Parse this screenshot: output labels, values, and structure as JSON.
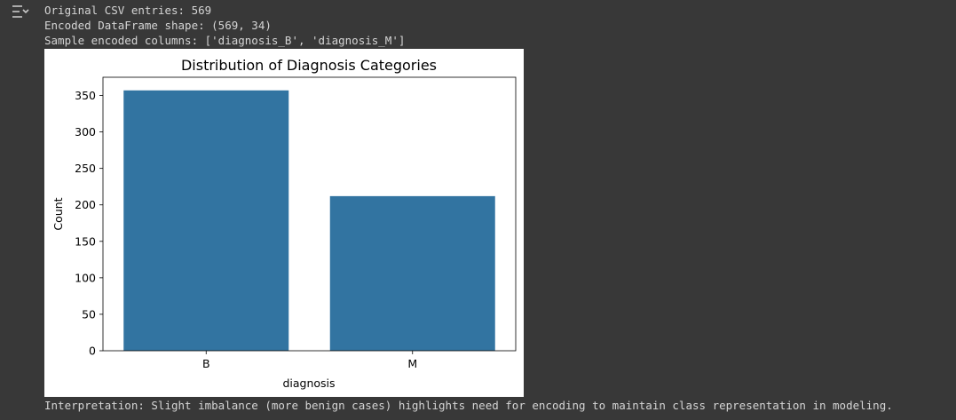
{
  "output": {
    "lines": [
      "Original CSV entries: 569",
      "Encoded DataFrame shape: (569, 34)",
      "Sample encoded columns: ['diagnosis_B', 'diagnosis_M']"
    ],
    "interpretation": "Interpretation: Slight imbalance (more benign cases) highlights need for encoding to maintain class representation in modeling."
  },
  "icons": {
    "toggle": "output-collapse-icon"
  },
  "colors": {
    "bar": "#3274a1",
    "background": "#383838",
    "text": "#d5d5d5"
  },
  "chart_data": {
    "type": "bar",
    "title": "Distribution of Diagnosis Categories",
    "xlabel": "diagnosis",
    "ylabel": "Count",
    "categories": [
      "B",
      "M"
    ],
    "values": [
      357,
      212
    ],
    "ylim": [
      0,
      375
    ],
    "yticks": [
      0,
      50,
      100,
      150,
      200,
      250,
      300,
      350
    ],
    "grid": false
  }
}
